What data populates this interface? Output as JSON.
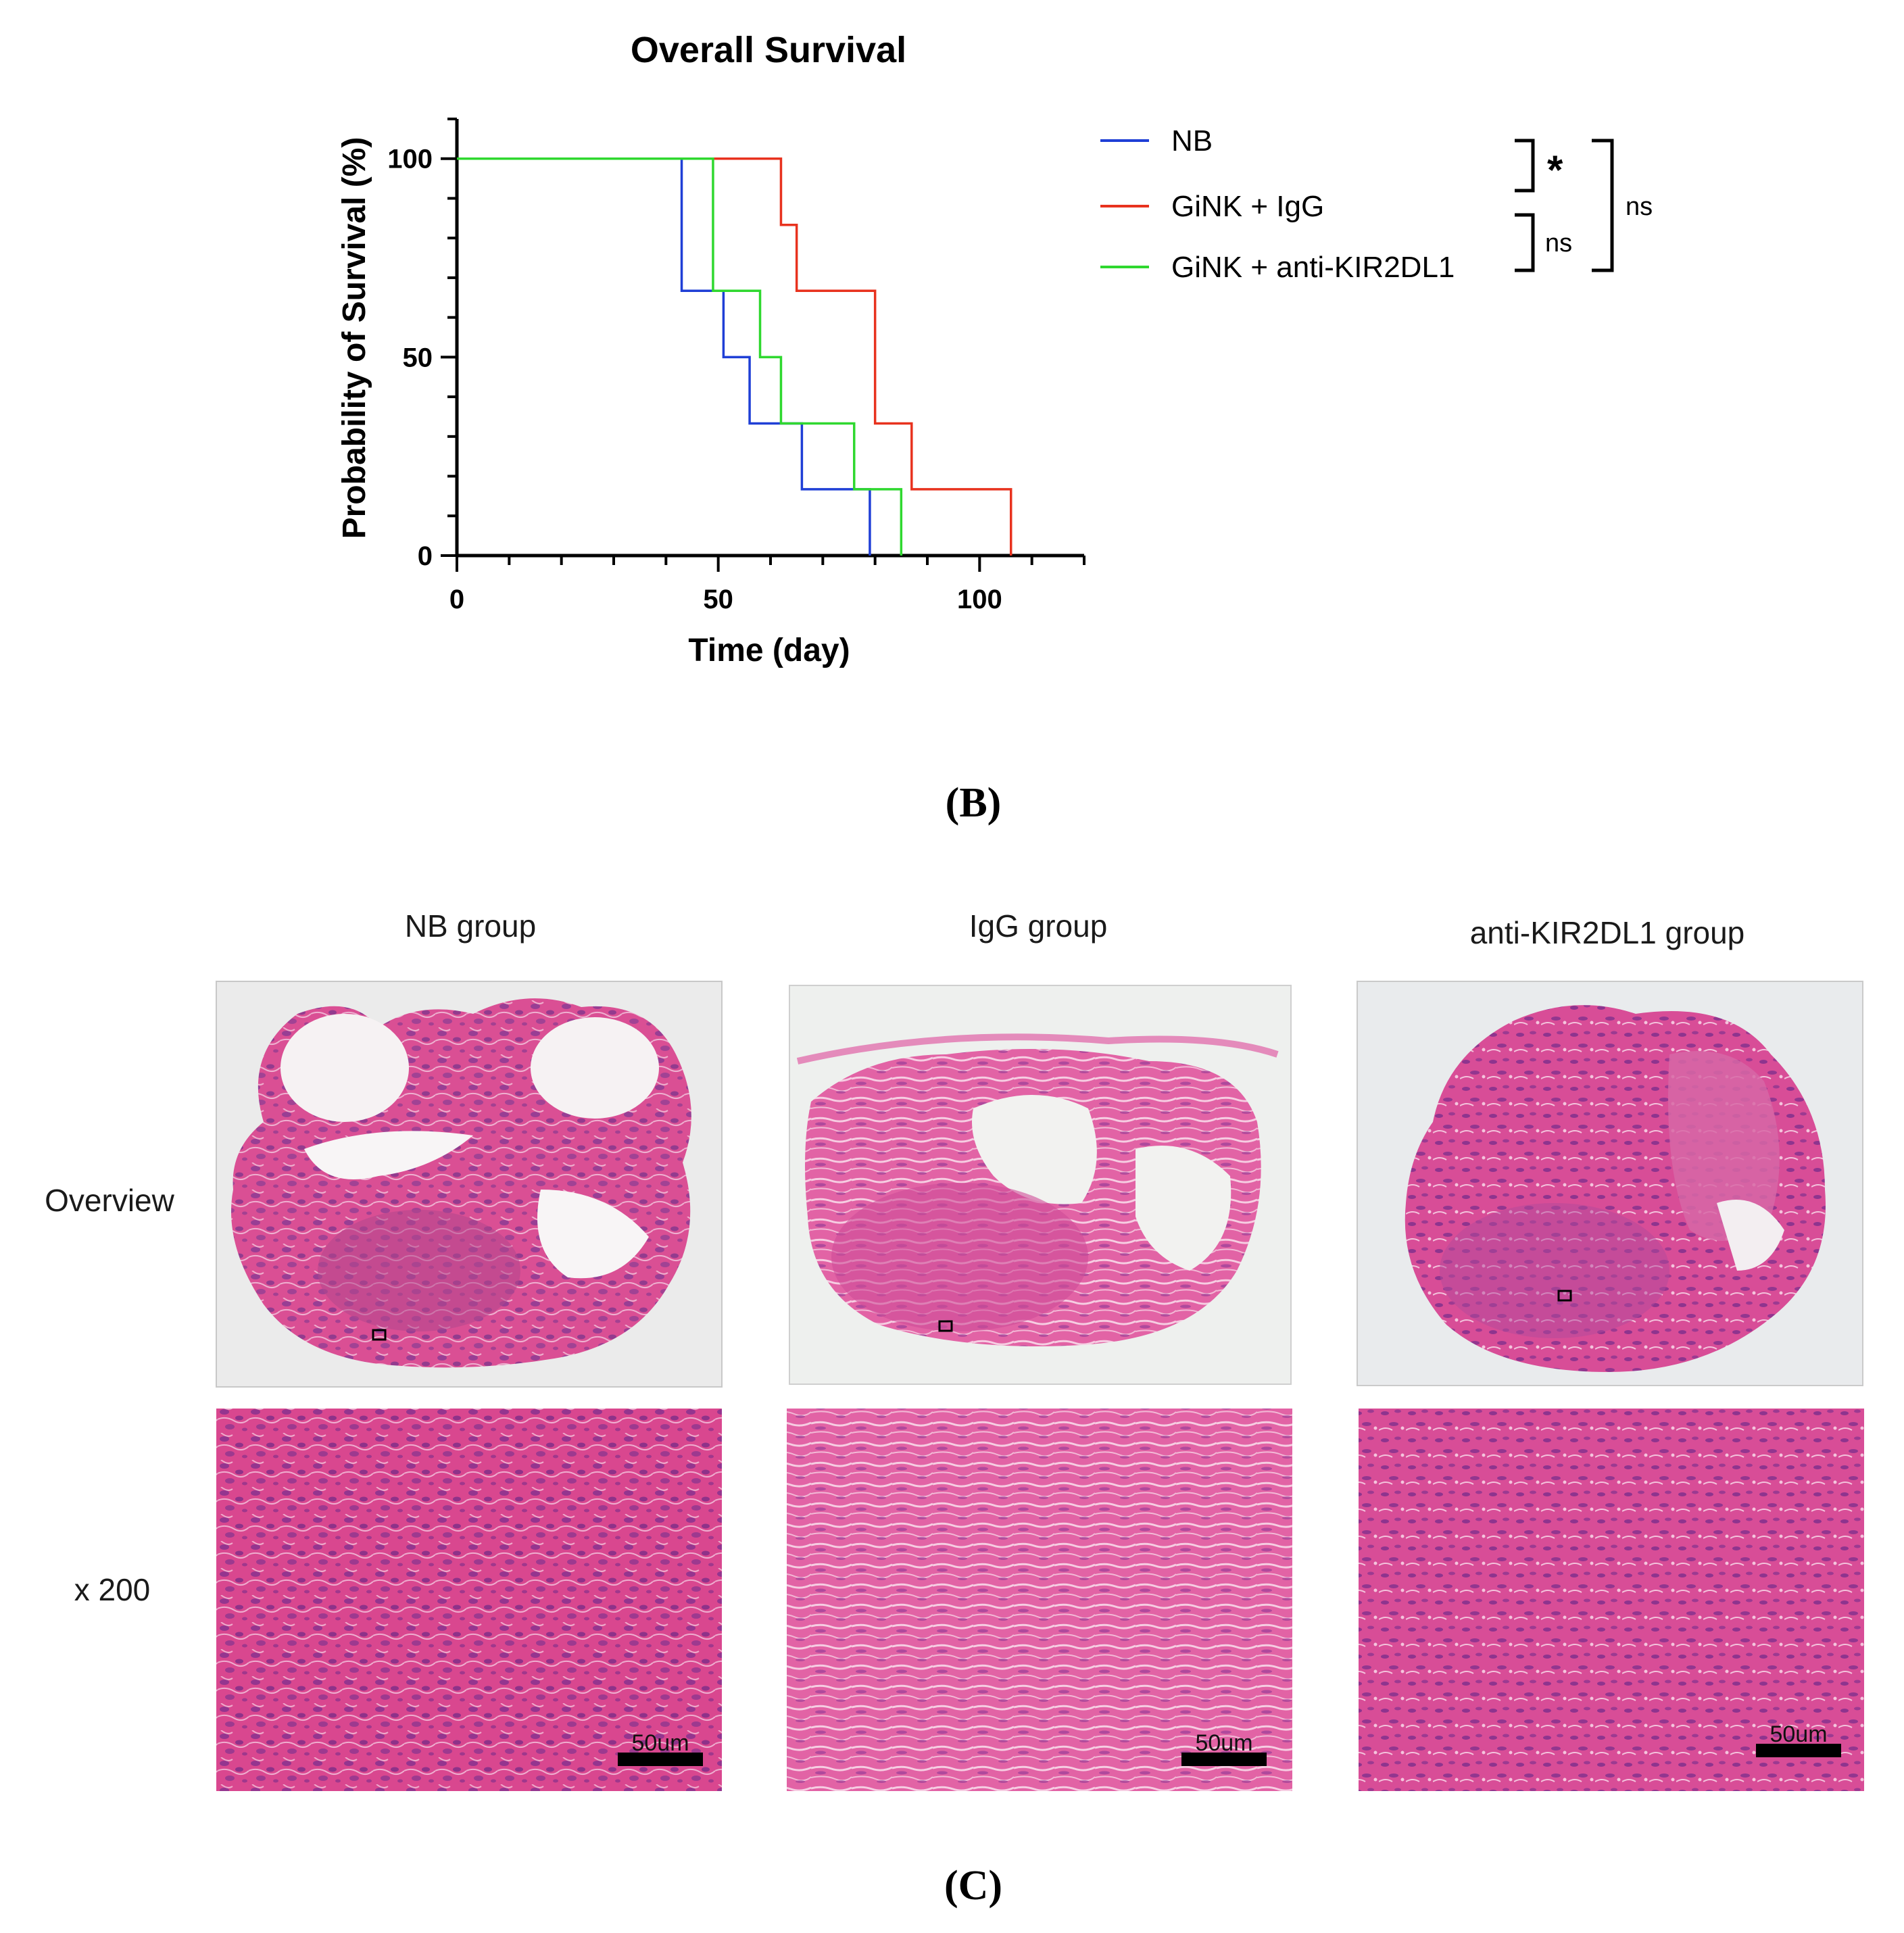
{
  "chart_data": {
    "type": "line",
    "subtype": "kaplan-meier",
    "title": "Overall Survival",
    "xlabel": "Time (day)",
    "ylabel": "Probability of Survival (%)",
    "xlim": [
      0,
      120
    ],
    "ylim": [
      0,
      110
    ],
    "xticks": [
      0,
      50,
      100
    ],
    "yticks": [
      0,
      50,
      100
    ],
    "grid": false,
    "legend_position": "right",
    "series": [
      {
        "name": "NB",
        "color": "#1f3fd6",
        "x": [
          0,
          43,
          51,
          56,
          66,
          79
        ],
        "y": [
          100,
          66.7,
          50,
          33.3,
          16.7,
          0
        ]
      },
      {
        "name": "GiNK + IgG",
        "color": "#e8321e",
        "x": [
          0,
          62,
          65,
          80,
          87,
          106
        ],
        "y": [
          100,
          83.3,
          66.7,
          33.3,
          16.7,
          0
        ]
      },
      {
        "name": "GiNK + anti-KIR2DL1",
        "color": "#2fd82f",
        "x": [
          0,
          49,
          58,
          62,
          76,
          85
        ],
        "y": [
          100,
          66.7,
          50,
          33.3,
          16.7,
          0
        ]
      }
    ],
    "annotations": [
      {
        "pair": [
          "NB",
          "GiNK + IgG"
        ],
        "label": "*"
      },
      {
        "pair": [
          "GiNK + IgG",
          "GiNK + anti-KIR2DL1"
        ],
        "label": "ns"
      },
      {
        "pair": [
          "NB",
          "GiNK + anti-KIR2DL1"
        ],
        "label": "ns"
      }
    ]
  },
  "panels": {
    "b": "(B)",
    "c": "(C)"
  },
  "histology": {
    "groups": [
      "NB group",
      "IgG group",
      "anti-KIR2DL1 group"
    ],
    "rows": [
      "Overview",
      "x 200"
    ],
    "scale_bar": "50um"
  }
}
